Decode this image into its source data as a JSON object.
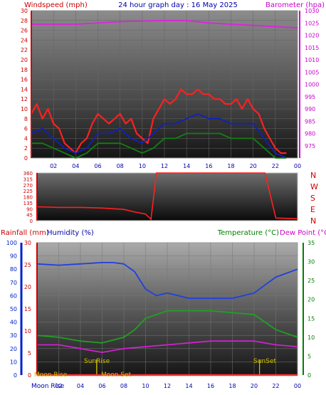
{
  "header": {
    "left_label": "Windspeed (mph)",
    "title": "24 hour graph day : 16 May 2025",
    "right_label": "Barometer (hpa)"
  },
  "colors": {
    "wind": "#d40000",
    "gust": "#ff2020",
    "wind_avg_blue": "#1020c0",
    "wind_green": "#108010",
    "baro": "#e020e0",
    "dir": "#ff2020",
    "humidity": "#2040e0",
    "temperature": "#20a020",
    "dew": "#d020d0",
    "rain": "#ff3030",
    "sunmoon": "#d0c000",
    "left_axis": "#cc0000",
    "right_axis": "#cc00cc",
    "temp_axis": "#008000",
    "rain_axis": "#0020cc",
    "hour_axis": "#0000aa"
  },
  "hours": [
    "02",
    "04",
    "06",
    "08",
    "10",
    "12",
    "14",
    "16",
    "18",
    "20",
    "22",
    "00"
  ],
  "compass": [
    "N",
    "W",
    "S",
    "E",
    "N"
  ],
  "bottom_labels": {
    "rainfall": "Rainfall (mm)",
    "humidity": "Humidity (%)",
    "temperature": "Temperature (°C)",
    "dew": "Dew Point (°C)"
  },
  "events": {
    "moon_rise_a": "Moon Rise",
    "moon_rise_b": "Moon Rise",
    "sun_rise": "SunRise",
    "moon_set": "Moon Set",
    "sun_set": "SunSet"
  },
  "chart_data": [
    {
      "type": "line",
      "title": "24 hour graph day : 16 May 2025",
      "ylabel": "Windspeed (mph)",
      "y2label": "Barometer (hpa)",
      "xlim": [
        0,
        24
      ],
      "ylim": [
        0,
        30
      ],
      "y2lim": [
        970,
        1030
      ],
      "yticks": [
        0,
        2,
        4,
        6,
        8,
        10,
        12,
        14,
        16,
        18,
        20,
        22,
        24,
        26,
        28,
        30
      ],
      "y2ticks": [
        975,
        980,
        985,
        990,
        995,
        1000,
        1005,
        1010,
        1015,
        1020,
        1025,
        1030
      ],
      "series": [
        {
          "key": "gust",
          "points": [
            [
              0,
              9
            ],
            [
              0.5,
              11
            ],
            [
              1,
              8
            ],
            [
              1.5,
              10
            ],
            [
              2,
              7
            ],
            [
              2.5,
              6
            ],
            [
              3,
              3
            ],
            [
              3.5,
              2
            ],
            [
              4,
              1
            ],
            [
              4.5,
              3
            ],
            [
              5,
              4
            ],
            [
              5.5,
              7
            ],
            [
              6,
              9
            ],
            [
              6.5,
              8
            ],
            [
              7,
              7
            ],
            [
              7.5,
              8
            ],
            [
              8,
              9
            ],
            [
              8.5,
              7
            ],
            [
              9,
              8
            ],
            [
              9.5,
              5
            ],
            [
              10,
              4
            ],
            [
              10.5,
              3
            ],
            [
              11,
              8
            ],
            [
              11.5,
              10
            ],
            [
              12,
              12
            ],
            [
              12.5,
              11
            ],
            [
              13,
              12
            ],
            [
              13.5,
              14
            ],
            [
              14,
              13
            ],
            [
              14.5,
              13
            ],
            [
              15,
              14
            ],
            [
              15.5,
              13
            ],
            [
              16,
              13
            ],
            [
              16.5,
              12
            ],
            [
              17,
              12
            ],
            [
              17.5,
              11
            ],
            [
              18,
              11
            ],
            [
              18.5,
              12
            ],
            [
              19,
              10
            ],
            [
              19.5,
              12
            ],
            [
              20,
              10
            ],
            [
              20.5,
              9
            ],
            [
              21,
              6
            ],
            [
              21.5,
              4
            ],
            [
              22,
              2
            ],
            [
              22.5,
              1
            ],
            [
              23,
              1
            ]
          ]
        },
        {
          "key": "wind_avg_blue",
          "points": [
            [
              0,
              5
            ],
            [
              1,
              6
            ],
            [
              2,
              4
            ],
            [
              3,
              2
            ],
            [
              4,
              1
            ],
            [
              5,
              2
            ],
            [
              6,
              5
            ],
            [
              7,
              5
            ],
            [
              8,
              6
            ],
            [
              9,
              4
            ],
            [
              10,
              3
            ],
            [
              11,
              5
            ],
            [
              12,
              7
            ],
            [
              13,
              7
            ],
            [
              14,
              8
            ],
            [
              15,
              9
            ],
            [
              16,
              8
            ],
            [
              17,
              8
            ],
            [
              18,
              7
            ],
            [
              19,
              7
            ],
            [
              20,
              7
            ],
            [
              21,
              4
            ],
            [
              22,
              1
            ],
            [
              23,
              0
            ]
          ]
        },
        {
          "key": "wind_green",
          "points": [
            [
              0,
              3
            ],
            [
              1,
              3
            ],
            [
              2,
              2
            ],
            [
              3,
              1
            ],
            [
              4,
              0
            ],
            [
              5,
              1
            ],
            [
              6,
              3
            ],
            [
              7,
              3
            ],
            [
              8,
              3
            ],
            [
              9,
              2
            ],
            [
              10,
              1
            ],
            [
              11,
              2
            ],
            [
              12,
              4
            ],
            [
              13,
              4
            ],
            [
              14,
              5
            ],
            [
              15,
              5
            ],
            [
              16,
              5
            ],
            [
              17,
              5
            ],
            [
              18,
              4
            ],
            [
              19,
              4
            ],
            [
              20,
              4
            ],
            [
              21,
              2
            ],
            [
              22,
              0
            ],
            [
              23,
              0
            ]
          ]
        },
        {
          "key": "baro",
          "axis": "y2",
          "points": [
            [
              0,
              1024.5
            ],
            [
              4,
              1024.5
            ],
            [
              8,
              1025.5
            ],
            [
              12,
              1026
            ],
            [
              14,
              1026
            ],
            [
              16,
              1025
            ],
            [
              18,
              1024.5
            ],
            [
              20,
              1024
            ],
            [
              22,
              1023.5
            ],
            [
              24,
              1023
            ]
          ]
        }
      ]
    },
    {
      "type": "line",
      "xlim": [
        0,
        24
      ],
      "ylim": [
        0,
        360
      ],
      "yticks": [
        0,
        45,
        90,
        135,
        180,
        225,
        270,
        315,
        360
      ],
      "series": [
        {
          "key": "dir",
          "points": [
            [
              0,
              105
            ],
            [
              2,
              100
            ],
            [
              4,
              100
            ],
            [
              6,
              95
            ],
            [
              8,
              85
            ],
            [
              9,
              65
            ],
            [
              10,
              50
            ],
            [
              10.5,
              10
            ],
            [
              11,
              360
            ],
            [
              12,
              360
            ],
            [
              14,
              360
            ],
            [
              16,
              360
            ],
            [
              18,
              360
            ],
            [
              20,
              360
            ],
            [
              21,
              360
            ],
            [
              22,
              20
            ],
            [
              24,
              15
            ]
          ]
        }
      ]
    },
    {
      "type": "line",
      "ylabel": "Humidity (%)",
      "y2label": "Temperature (°C)",
      "xlim": [
        0,
        24
      ],
      "ylim": [
        0,
        100
      ],
      "yticks": [
        0,
        5,
        10,
        15,
        20,
        25,
        30,
        35,
        40,
        45,
        50,
        55,
        60,
        65,
        70,
        75,
        80,
        85,
        90,
        95,
        100
      ],
      "rain_ticks": [
        0,
        5,
        10,
        15,
        20,
        25,
        30
      ],
      "y2lim": [
        0,
        35
      ],
      "y2ticks": [
        0,
        5,
        10,
        15,
        20,
        25,
        30,
        35
      ],
      "series": [
        {
          "key": "humidity",
          "axis": "y",
          "points": [
            [
              0,
              84
            ],
            [
              2,
              83
            ],
            [
              4,
              84
            ],
            [
              6,
              85
            ],
            [
              7,
              85
            ],
            [
              8,
              84
            ],
            [
              9,
              78
            ],
            [
              10,
              65
            ],
            [
              11,
              60
            ],
            [
              12,
              62
            ],
            [
              14,
              58
            ],
            [
              16,
              58
            ],
            [
              18,
              58
            ],
            [
              20,
              62
            ],
            [
              22,
              74
            ],
            [
              24,
              80
            ]
          ]
        },
        {
          "key": "temperature",
          "axis": "y2",
          "points": [
            [
              0,
              10.5
            ],
            [
              2,
              10
            ],
            [
              4,
              9
            ],
            [
              6,
              8.5
            ],
            [
              8,
              10
            ],
            [
              9,
              12
            ],
            [
              10,
              15
            ],
            [
              11,
              16
            ],
            [
              12,
              17
            ],
            [
              14,
              17
            ],
            [
              16,
              17
            ],
            [
              18,
              16.5
            ],
            [
              20,
              16
            ],
            [
              22,
              12
            ],
            [
              24,
              10
            ]
          ]
        },
        {
          "key": "dew",
          "axis": "y2",
          "points": [
            [
              0,
              8
            ],
            [
              2,
              8
            ],
            [
              4,
              7
            ],
            [
              6,
              6
            ],
            [
              8,
              7
            ],
            [
              10,
              7.5
            ],
            [
              12,
              8
            ],
            [
              14,
              8.5
            ],
            [
              16,
              9
            ],
            [
              18,
              9
            ],
            [
              20,
              9
            ],
            [
              22,
              8
            ],
            [
              24,
              7.5
            ]
          ]
        },
        {
          "key": "rain",
          "axis": "y",
          "points": [
            [
              0,
              0
            ],
            [
              24,
              0
            ]
          ]
        }
      ],
      "events": [
        {
          "key": "sun_rise",
          "x": 5.5
        },
        {
          "key": "moon_set",
          "x": 5.5
        },
        {
          "key": "sun_set",
          "x": 20.5
        }
      ]
    }
  ]
}
